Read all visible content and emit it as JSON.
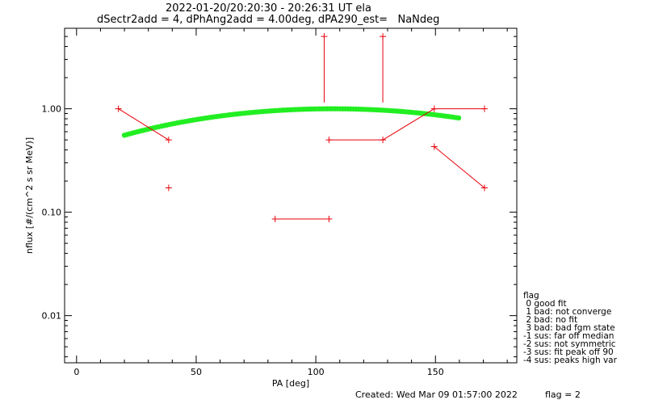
{
  "chart_data": {
    "type": "scatter",
    "title": "2022-01-20/20:20:30 - 20:26:31 UT ela",
    "subtitle": "dSectr2add = 4, dPhAng2add = 4.00deg, dPA290_est=   NaNdeg",
    "xlabel": "PA [deg]",
    "ylabel": "nflux [#/(cm^2 s sr MeV)]",
    "xlim": [
      -5,
      184
    ],
    "ylim": [
      0.0035,
      6.0
    ],
    "yscale": "log",
    "x_ticks": [
      0,
      50,
      100,
      150
    ],
    "x_tick_labels": [
      "0",
      "50",
      "100",
      "150"
    ],
    "y_ticks": [
      0.01,
      0.1,
      1.0
    ],
    "y_tick_labels": [
      "0.01",
      "0.10",
      "1.00"
    ],
    "grid": false,
    "legend_position": "right",
    "series": [
      {
        "kind": "points_with_lines",
        "color": "#e8000b",
        "points": [
          {
            "x": 17.5,
            "y": 1.0
          },
          {
            "x": 38.5,
            "y": 0.5
          },
          {
            "x": 38.5,
            "y": 0.172
          },
          {
            "x": 83,
            "y": 0.086
          },
          {
            "x": 105.5,
            "y": 0.086
          },
          {
            "x": 103.5,
            "y": 5.0
          },
          {
            "x": 105.5,
            "y": 0.5
          },
          {
            "x": 128,
            "y": 0.5
          },
          {
            "x": 128,
            "y": 5.0
          },
          {
            "x": 149.5,
            "y": 1.0
          },
          {
            "x": 170.5,
            "y": 1.0
          },
          {
            "x": 149.5,
            "y": 0.43
          },
          {
            "x": 170.5,
            "y": 0.172
          }
        ],
        "segments": [
          [
            17.5,
            1.0,
            38.5,
            0.5
          ],
          [
            83,
            0.086,
            105.5,
            0.086
          ],
          [
            103.5,
            5.0,
            103.5,
            1.15
          ],
          [
            128,
            5.0,
            128,
            1.15
          ],
          [
            105.5,
            0.5,
            128,
            0.5
          ],
          [
            128,
            0.5,
            149.5,
            1.0
          ],
          [
            149.5,
            1.0,
            170.5,
            1.0
          ],
          [
            149.5,
            0.43,
            170.5,
            0.172
          ]
        ]
      },
      {
        "kind": "fit_curve",
        "color": "#22ee22",
        "x_start": 20,
        "x_end": 160,
        "peak_x": 107,
        "peak_y": 1.0,
        "base_y": 0.53,
        "half_width": 90
      }
    ]
  },
  "legend": {
    "title": "flag",
    "entries": [
      " 0 good fit",
      " 1 bad: not converge",
      " 2 bad: no fit",
      " 3 bad: bad fgm state",
      "-1 sus: far off median",
      "-2 sus: not symmetric",
      "-3 sus: fit peak off 90",
      "-4 sus: peaks high var"
    ]
  },
  "footer": {
    "created": "Created: Wed Mar 09 01:57:00 2022",
    "flag": "flag = 2"
  }
}
